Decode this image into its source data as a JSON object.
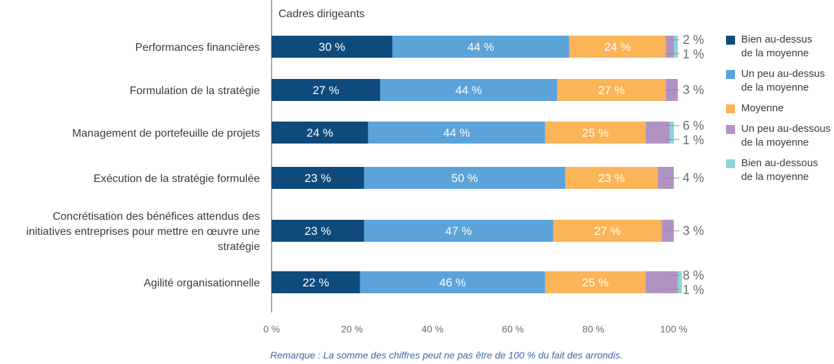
{
  "chart_data": {
    "type": "bar",
    "orientation": "horizontal",
    "stacked": true,
    "title": "Cadres dirigeants",
    "categories": [
      "Performances financières",
      "Formulation de la stratégie",
      "Management de portefeuille de projets",
      "Exécution de la stratégie formulée",
      "Concrétisation des bénéfices attendus des initiatives entreprises pour mettre en œuvre une stratégie",
      "Agilité organisationnelle"
    ],
    "category_lines": [
      [
        "Performances financières"
      ],
      [
        "Formulation de la stratégie"
      ],
      [
        "Management de portefeuille de projets"
      ],
      [
        "Exécution de la stratégie formulée"
      ],
      [
        "Concrétisation des bénéfices attendus des",
        "initiatives entreprises pour mettre en œuvre une",
        "stratégie"
      ],
      [
        "Agilité organisationnelle"
      ]
    ],
    "series": [
      {
        "name": "Bien au-dessus de la moyenne",
        "name_lines": [
          "Bien au-dessus",
          "de la moyenne"
        ],
        "color": "#0e4a7b",
        "values": [
          30,
          27,
          24,
          23,
          23,
          22
        ]
      },
      {
        "name": "Un peu au-dessus de la moyenne",
        "name_lines": [
          "Un peu au-dessus",
          "de la moyenne"
        ],
        "color": "#5ba3d9",
        "values": [
          44,
          44,
          44,
          50,
          47,
          46
        ]
      },
      {
        "name": "Moyenne",
        "name_lines": [
          "Moyenne"
        ],
        "color": "#fbb458",
        "values": [
          24,
          27,
          25,
          23,
          27,
          25
        ]
      },
      {
        "name": "Un peu au-dessous de la moyenne",
        "name_lines": [
          "Un peu au-dessous",
          "de la moyenne"
        ],
        "color": "#b193c3",
        "values": [
          2,
          3,
          6,
          4,
          3,
          8
        ]
      },
      {
        "name": "Bien au-dessous de la moyenne",
        "name_lines": [
          "Bien au-dessous",
          "de la moyenne"
        ],
        "color": "#8ed4d6",
        "values": [
          1,
          0,
          1,
          0,
          0,
          1
        ]
      }
    ],
    "xlim": [
      0,
      100
    ],
    "xticks": [
      0,
      20,
      40,
      60,
      80,
      100
    ],
    "xtick_labels": [
      "0 %",
      "20 %",
      "40 %",
      "60 %",
      "80 %",
      "100 %"
    ],
    "value_suffix": " %",
    "legend_position": "right",
    "grid": false
  },
  "note": "Remarque : La somme des chiffres peut ne pas être de 100 % du fait des arrondis."
}
